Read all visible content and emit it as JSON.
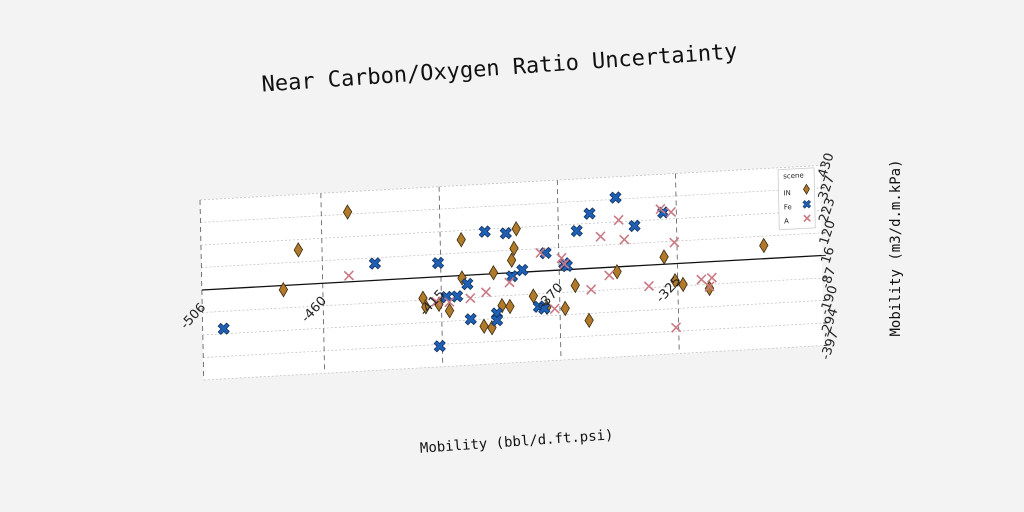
{
  "chart_data": {
    "type": "scatter",
    "title": "Near Carbon/Oxygen Ratio Uncertainty",
    "xlabel": "Mobility (bbl/d.ft.psi)",
    "ylabel": "Mobility (m3/d.m.kPa)",
    "xlim": [
      -506,
      -270
    ],
    "ylim": [
      -397,
      430
    ],
    "x_ticks": [
      "-506",
      "-460",
      "-415",
      "-370",
      "-325"
    ],
    "x_tick_values": [
      -506,
      -460,
      -415,
      -370,
      -325
    ],
    "y_ticks": [
      "-397",
      "-294",
      "-190",
      "-87",
      "16",
      "120",
      "223",
      "327",
      "430"
    ],
    "y_tick_values": [
      -397,
      -294,
      -190,
      -87,
      16,
      120,
      223,
      327,
      430
    ],
    "grid": true,
    "legend": {
      "title": "scene",
      "position": "top-right",
      "entries": [
        "IN",
        "Fe",
        "A"
      ]
    },
    "series": [
      {
        "name": "IN",
        "marker": "diamond",
        "color": "#b07a2a",
        "points": [
          [
            -475,
            -3
          ],
          [
            -469,
            176
          ],
          [
            -450,
            337
          ],
          [
            -422,
            -78
          ],
          [
            -421,
            -118
          ],
          [
            -416,
            -110
          ],
          [
            -412,
            -142
          ],
          [
            -407,
            5
          ],
          [
            -407,
            181
          ],
          [
            -399,
            -222
          ],
          [
            -395,
            21
          ],
          [
            -396,
            -231
          ],
          [
            -392,
            -132
          ],
          [
            -389,
            -138
          ],
          [
            -387,
            128
          ],
          [
            -388,
            74
          ],
          [
            -386,
            217
          ],
          [
            -380,
            -96
          ],
          [
            -375,
            -151
          ],
          [
            -368,
            -161
          ],
          [
            -364,
            -58
          ],
          [
            -359,
            -222
          ],
          [
            -348,
            -6
          ],
          [
            -330,
            50
          ],
          [
            -326,
            -62
          ],
          [
            -323,
            -81
          ],
          [
            -313,
            -106
          ],
          [
            -292,
            77
          ]
        ]
      },
      {
        "name": "Fe",
        "marker": "x-filled",
        "color": "#1f5fb4",
        "points": [
          [
            -498,
            -167
          ],
          [
            -440,
            94
          ],
          [
            -416,
            80
          ],
          [
            -416,
            -302
          ],
          [
            -413,
            -78
          ],
          [
            -409,
            -78
          ],
          [
            -405,
            -24
          ],
          [
            -404,
            -186
          ],
          [
            -394,
            -166
          ],
          [
            -394,
            -198
          ],
          [
            -398,
            212
          ],
          [
            -388,
            0
          ],
          [
            -390,
            199
          ],
          [
            -384,
            26
          ],
          [
            -378,
            -146
          ],
          [
            -376,
            -156
          ],
          [
            -375,
            98
          ],
          [
            -368,
            46
          ],
          [
            -367,
            33
          ],
          [
            -363,
            192
          ],
          [
            -358,
            268
          ],
          [
            -348,
            335
          ],
          [
            -341,
            200
          ],
          [
            -330,
            254
          ]
        ]
      },
      {
        "name": "A",
        "marker": "x",
        "color": "#c97a85",
        "points": [
          [
            -450,
            45
          ],
          [
            -417,
            -96
          ],
          [
            -412,
            -102
          ],
          [
            -404,
            -90
          ],
          [
            -398,
            -66
          ],
          [
            -389,
            -27
          ],
          [
            -377,
            101
          ],
          [
            -372,
            -160
          ],
          [
            -369,
            71
          ],
          [
            -368,
            43
          ],
          [
            -358,
            -81
          ],
          [
            -354,
            160
          ],
          [
            -351,
            -20
          ],
          [
            -347,
            231
          ],
          [
            -345,
            140
          ],
          [
            -336,
            -80
          ],
          [
            -331,
            271
          ],
          [
            -327,
            254
          ],
          [
            -326,
            114
          ],
          [
            -326,
            -277
          ],
          [
            -316,
            -63
          ],
          [
            -313,
            -98
          ],
          [
            -312,
            -58
          ]
        ]
      }
    ]
  }
}
